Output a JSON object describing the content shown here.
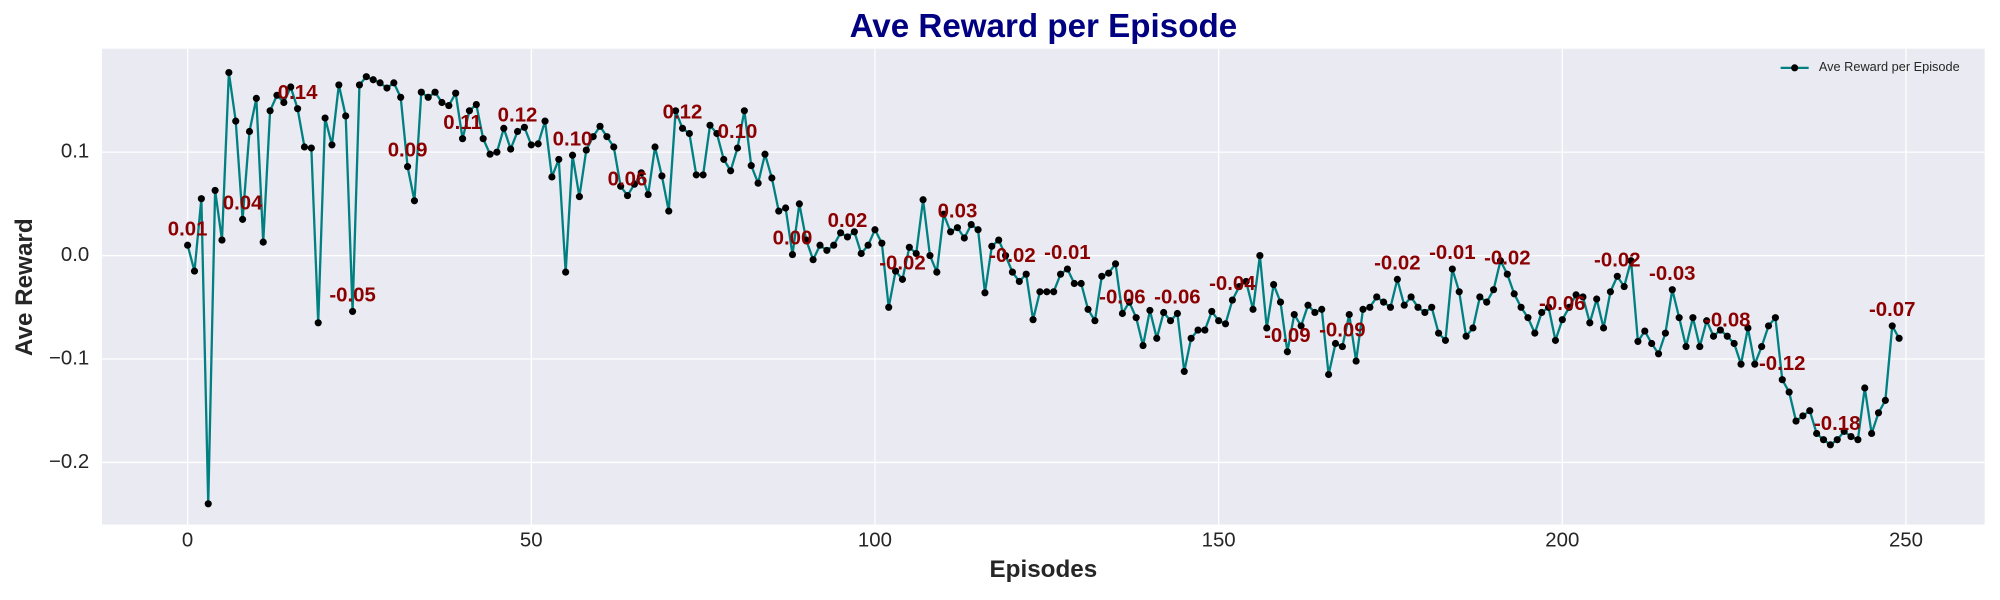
{
  "chart_data": {
    "type": "line",
    "title": "Ave Reward per Episode",
    "xlabel": "Episodes",
    "ylabel": "Ave Reward",
    "xlim": [
      -12.45,
      261.45
    ],
    "ylim": [
      -0.26,
      0.2
    ],
    "xticks": [
      0,
      50,
      100,
      150,
      200,
      250
    ],
    "yticks": [
      {
        "value": -0.2,
        "label": "−0.2"
      },
      {
        "value": -0.1,
        "label": "−0.1"
      },
      {
        "value": 0,
        "label": "0.0"
      },
      {
        "value": 0.1,
        "label": "0.1"
      }
    ],
    "grid": true,
    "legend": "upper right",
    "label_color": "#8b0000",
    "x": [
      0,
      1,
      2,
      3,
      4,
      5,
      6,
      7,
      8,
      9,
      10,
      11,
      12,
      13,
      14,
      15,
      16,
      17,
      18,
      19,
      20,
      21,
      22,
      23,
      24,
      25,
      26,
      27,
      28,
      29,
      30,
      31,
      32,
      33,
      34,
      35,
      36,
      37,
      38,
      39,
      40,
      41,
      42,
      43,
      44,
      45,
      46,
      47,
      48,
      49,
      50,
      51,
      52,
      53,
      54,
      55,
      56,
      57,
      58,
      59,
      60,
      61,
      62,
      63,
      64,
      65,
      66,
      67,
      68,
      69,
      70,
      71,
      72,
      73,
      74,
      75,
      76,
      77,
      78,
      79,
      80,
      81,
      82,
      83,
      84,
      85,
      86,
      87,
      88,
      89,
      90,
      91,
      92,
      93,
      94,
      95,
      96,
      97,
      98,
      99,
      100,
      101,
      102,
      103,
      104,
      105,
      106,
      107,
      108,
      109,
      110,
      111,
      112,
      113,
      114,
      115,
      116,
      117,
      118,
      119,
      120,
      121,
      122,
      123,
      124,
      125,
      126,
      127,
      128,
      129,
      130,
      131,
      132,
      133,
      134,
      135,
      136,
      137,
      138,
      139,
      140,
      141,
      142,
      143,
      144,
      145,
      146,
      147,
      148,
      149,
      150,
      151,
      152,
      153,
      154,
      155,
      156,
      157,
      158,
      159,
      160,
      161,
      162,
      163,
      164,
      165,
      166,
      167,
      168,
      169,
      170,
      171,
      172,
      173,
      174,
      175,
      176,
      177,
      178,
      179,
      180,
      181,
      182,
      183,
      184,
      185,
      186,
      187,
      188,
      189,
      190,
      191,
      192,
      193,
      194,
      195,
      196,
      197,
      198,
      199,
      200,
      201,
      202,
      203,
      204,
      205,
      206,
      207,
      208,
      209,
      210,
      211,
      212,
      213,
      214,
      215,
      216,
      217,
      218,
      219,
      220,
      221,
      222,
      223,
      224,
      225,
      226,
      227,
      228,
      229,
      230,
      231,
      232,
      233,
      234,
      235,
      236,
      237,
      238,
      239,
      240,
      241,
      242,
      243,
      244,
      245,
      246,
      247,
      248,
      249
    ],
    "series": [
      {
        "name": "Ave Reward per Episode",
        "color": "#008080",
        "marker_color": "#000000",
        "values": [
          0.01,
          -0.015,
          0.055,
          -0.24,
          0.063,
          0.015,
          0.177,
          0.13,
          0.035,
          0.12,
          0.152,
          0.013,
          0.14,
          0.155,
          0.148,
          0.163,
          0.142,
          0.105,
          0.104,
          -0.065,
          0.133,
          0.107,
          0.165,
          0.135,
          -0.054,
          0.165,
          0.173,
          0.17,
          0.167,
          0.162,
          0.167,
          0.153,
          0.086,
          0.053,
          0.158,
          0.153,
          0.158,
          0.148,
          0.145,
          0.157,
          0.113,
          0.14,
          0.146,
          0.113,
          0.098,
          0.1,
          0.123,
          0.103,
          0.12,
          0.124,
          0.107,
          0.108,
          0.13,
          0.076,
          0.093,
          -0.016,
          0.097,
          0.057,
          0.102,
          0.115,
          0.125,
          0.115,
          0.105,
          0.067,
          0.058,
          0.069,
          0.08,
          0.059,
          0.105,
          0.077,
          0.043,
          0.14,
          0.123,
          0.118,
          0.078,
          0.078,
          0.126,
          0.118,
          0.093,
          0.082,
          0.104,
          0.14,
          0.087,
          0.07,
          0.098,
          0.075,
          0.043,
          0.046,
          0.001,
          0.05,
          0.015,
          -0.004,
          0.01,
          0.005,
          0.01,
          0.022,
          0.018,
          0.023,
          0.002,
          0.01,
          0.025,
          0.012,
          -0.05,
          -0.015,
          -0.023,
          0.008,
          0.002,
          0.054,
          0.0,
          -0.016,
          0.04,
          0.023,
          0.027,
          0.017,
          0.03,
          0.025,
          -0.036,
          0.009,
          0.015,
          0.0,
          -0.016,
          -0.025,
          -0.018,
          -0.062,
          -0.035,
          -0.035,
          -0.035,
          -0.018,
          -0.013,
          -0.027,
          -0.027,
          -0.052,
          -0.063,
          -0.02,
          -0.017,
          -0.008,
          -0.056,
          -0.045,
          -0.06,
          -0.087,
          -0.053,
          -0.08,
          -0.055,
          -0.063,
          -0.056,
          -0.112,
          -0.08,
          -0.072,
          -0.072,
          -0.054,
          -0.063,
          -0.066,
          -0.043,
          -0.03,
          -0.025,
          -0.052,
          0.0,
          -0.07,
          -0.028,
          -0.045,
          -0.093,
          -0.057,
          -0.068,
          -0.048,
          -0.055,
          -0.052,
          -0.115,
          -0.085,
          -0.088,
          -0.057,
          -0.102,
          -0.052,
          -0.05,
          -0.04,
          -0.045,
          -0.05,
          -0.023,
          -0.048,
          -0.04,
          -0.05,
          -0.055,
          -0.05,
          -0.075,
          -0.082,
          -0.013,
          -0.035,
          -0.078,
          -0.07,
          -0.04,
          -0.045,
          -0.033,
          -0.005,
          -0.018,
          -0.037,
          -0.05,
          -0.06,
          -0.075,
          -0.055,
          -0.05,
          -0.082,
          -0.062,
          -0.05,
          -0.038,
          -0.04,
          -0.065,
          -0.042,
          -0.07,
          -0.035,
          -0.02,
          -0.03,
          -0.005,
          -0.083,
          -0.073,
          -0.085,
          -0.095,
          -0.075,
          -0.033,
          -0.06,
          -0.088,
          -0.06,
          -0.088,
          -0.063,
          -0.078,
          -0.072,
          -0.078,
          -0.085,
          -0.105,
          -0.07,
          -0.105,
          -0.088,
          -0.068,
          -0.06,
          -0.12,
          -0.132,
          -0.16,
          -0.155,
          -0.15,
          -0.172,
          -0.178,
          -0.183,
          -0.178,
          -0.17,
          -0.175,
          -0.178,
          -0.128,
          -0.172,
          -0.152,
          -0.14,
          -0.068,
          -0.08
        ],
        "value_labels": [
          "0.01",
          null,
          null,
          null,
          null,
          null,
          null,
          null,
          "0.04",
          null,
          null,
          null,
          null,
          null,
          null,
          null,
          "0.14",
          null,
          null,
          null,
          null,
          null,
          null,
          null,
          "-0.05",
          null,
          null,
          null,
          null,
          null,
          null,
          null,
          "0.09",
          null,
          null,
          null,
          null,
          null,
          null,
          null,
          "0.11",
          null,
          null,
          null,
          null,
          null,
          null,
          null,
          "0.12",
          null,
          null,
          null,
          null,
          null,
          null,
          null,
          "0.10",
          null,
          null,
          null,
          null,
          null,
          null,
          null,
          "0.06",
          null,
          null,
          null,
          null,
          null,
          null,
          null,
          "0.12",
          null,
          null,
          null,
          null,
          null,
          null,
          null,
          "0.10",
          null,
          null,
          null,
          null,
          null,
          null,
          null,
          "0.00",
          null,
          null,
          null,
          null,
          null,
          null,
          null,
          "0.02",
          null,
          null,
          null,
          null,
          null,
          null,
          null,
          "-0.02",
          null,
          null,
          null,
          null,
          null,
          null,
          null,
          "0.03",
          null,
          null,
          null,
          null,
          null,
          null,
          null,
          "-0.02",
          null,
          null,
          null,
          null,
          null,
          null,
          null,
          "-0.01",
          null,
          null,
          null,
          null,
          null,
          null,
          null,
          "-0.06",
          null,
          null,
          null,
          null,
          null,
          null,
          null,
          "-0.06",
          null,
          null,
          null,
          null,
          null,
          null,
          null,
          "-0.04",
          null,
          null,
          null,
          null,
          null,
          null,
          null,
          "-0.09",
          null,
          null,
          null,
          null,
          null,
          null,
          null,
          "-0.09",
          null,
          null,
          null,
          null,
          null,
          null,
          null,
          "-0.02",
          null,
          null,
          null,
          null,
          null,
          null,
          null,
          "-0.01",
          null,
          null,
          null,
          null,
          null,
          null,
          null,
          "-0.02",
          null,
          null,
          null,
          null,
          null,
          null,
          null,
          "-0.06",
          null,
          null,
          null,
          null,
          null,
          null,
          null,
          "-0.02",
          null,
          null,
          null,
          null,
          null,
          null,
          null,
          "-0.03",
          null,
          null,
          null,
          null,
          null,
          null,
          null,
          "-0.08",
          null,
          null,
          null,
          null,
          null,
          null,
          null,
          "-0.12",
          null,
          null,
          null,
          null,
          null,
          null,
          null,
          "-0.18",
          null,
          null,
          null,
          null,
          null,
          null,
          null,
          "-0.07",
          null
        ]
      }
    ]
  }
}
